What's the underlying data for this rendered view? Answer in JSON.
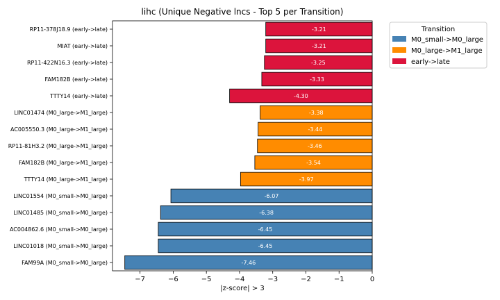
{
  "chart_data": {
    "type": "bar",
    "orientation": "horizontal",
    "title": "lihc (Unique Negative lncs - Top 5 per Transition)",
    "xlabel": "|z-score| > 3",
    "ylabel": "",
    "xlim": [
      -7.83,
      0
    ],
    "xticks": [
      -7,
      -6,
      -5,
      -4,
      -3,
      -2,
      -1,
      0
    ],
    "grid": false,
    "legend": {
      "title": "Transition",
      "placement": "upper-left-outside",
      "entries": [
        {
          "name": "M0_small->M0_large",
          "color": "#4682b4"
        },
        {
          "name": "M0_large->M1_large",
          "color": "#ff8c00"
        },
        {
          "name": "early->late",
          "color": "#dc143c"
        }
      ]
    },
    "bars": [
      {
        "label": "RP11-378J18.9 (early->late)",
        "value": -3.21,
        "value_label": "-3.21",
        "group": "early->late"
      },
      {
        "label": "MIAT (early->late)",
        "value": -3.21,
        "value_label": "-3.21",
        "group": "early->late"
      },
      {
        "label": "RP11-422N16.3 (early->late)",
        "value": -3.25,
        "value_label": "-3.25",
        "group": "early->late"
      },
      {
        "label": "FAM182B (early->late)",
        "value": -3.33,
        "value_label": "-3.33",
        "group": "early->late"
      },
      {
        "label": "TTTY14 (early->late)",
        "value": -4.3,
        "value_label": "-4.30",
        "group": "early->late"
      },
      {
        "label": "LINC01474 (M0_large->M1_large)",
        "value": -3.38,
        "value_label": "-3.38",
        "group": "M0_large->M1_large"
      },
      {
        "label": "AC005550.3 (M0_large->M1_large)",
        "value": -3.44,
        "value_label": "-3.44",
        "group": "M0_large->M1_large"
      },
      {
        "label": "RP11-81H3.2 (M0_large->M1_large)",
        "value": -3.46,
        "value_label": "-3.46",
        "group": "M0_large->M1_large"
      },
      {
        "label": "FAM182B (M0_large->M1_large)",
        "value": -3.54,
        "value_label": "-3.54",
        "group": "M0_large->M1_large"
      },
      {
        "label": "TTTY14 (M0_large->M1_large)",
        "value": -3.97,
        "value_label": "-3.97",
        "group": "M0_large->M1_large"
      },
      {
        "label": "LINC01554 (M0_small->M0_large)",
        "value": -6.07,
        "value_label": "-6.07",
        "group": "M0_small->M0_large"
      },
      {
        "label": "LINC01485 (M0_small->M0_large)",
        "value": -6.38,
        "value_label": "-6.38",
        "group": "M0_small->M0_large"
      },
      {
        "label": "AC004862.6 (M0_small->M0_large)",
        "value": -6.45,
        "value_label": "-6.45",
        "group": "M0_small->M0_large"
      },
      {
        "label": "LINC01018 (M0_small->M0_large)",
        "value": -6.45,
        "value_label": "-6.45",
        "group": "M0_small->M0_large"
      },
      {
        "label": "FAM99A (M0_small->M0_large)",
        "value": -7.46,
        "value_label": "-7.46",
        "group": "M0_small->M0_large"
      }
    ]
  }
}
